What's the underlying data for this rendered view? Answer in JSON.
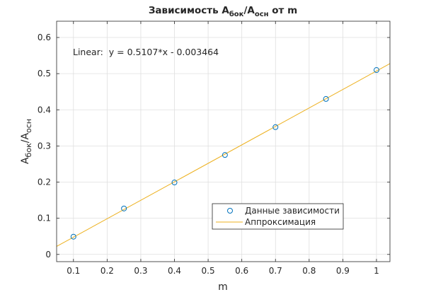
{
  "chart_data": {
    "type": "scatter",
    "title": {
      "prefix": "Зависимость A",
      "sub1": "бок",
      "slash": "/A",
      "sub2": "осн",
      "suffix": " от m"
    },
    "xlabel": "m",
    "ylabel": {
      "base1": "A",
      "sub1": "бок",
      "slash": "/A",
      "sub2": "осн"
    },
    "xlim": [
      0.05,
      1.04
    ],
    "ylim": [
      -0.02,
      0.645
    ],
    "xticks": [
      0.1,
      0.2,
      0.3,
      0.4,
      0.5,
      0.6,
      0.7,
      0.8,
      0.9,
      1
    ],
    "xtick_labels": [
      "0.1",
      "0.2",
      "0.3",
      "0.4",
      "0.5",
      "0.6",
      "0.7",
      "0.8",
      "0.9",
      "1"
    ],
    "yticks": [
      0,
      0.1,
      0.2,
      0.3,
      0.4,
      0.5,
      0.6
    ],
    "ytick_labels": [
      "0",
      "0.1",
      "0.2",
      "0.3",
      "0.4",
      "0.5",
      "0.6"
    ],
    "grid": true,
    "legend_position": "lower-right",
    "series": [
      {
        "name": "Данные зависимости",
        "kind": "scatter",
        "marker": "circle",
        "color": "#0072bd",
        "x": [
          0.1,
          0.25,
          0.4,
          0.55,
          0.7,
          0.85,
          1.0
        ],
        "y": [
          0.049,
          0.127,
          0.199,
          0.275,
          0.352,
          0.43,
          0.51
        ]
      },
      {
        "name": "Аппроксимация",
        "kind": "line",
        "color": "#edb120",
        "slope": 0.5107,
        "intercept": -0.003464
      }
    ],
    "annotation": "Linear:  y = 0.5107*x - 0.003464"
  }
}
